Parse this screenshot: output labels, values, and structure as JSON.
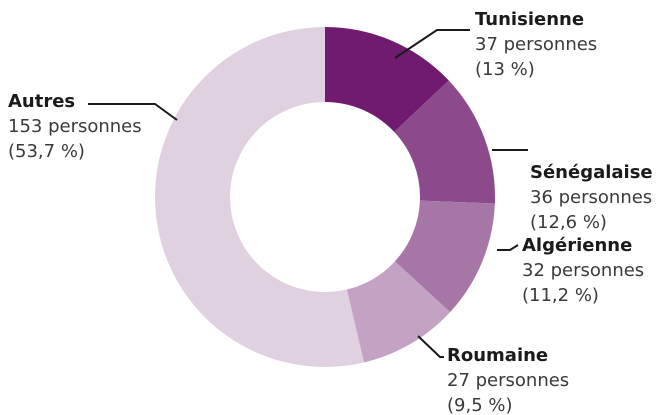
{
  "chart_data": {
    "type": "donut",
    "categories": [
      "Tunisienne",
      "Sénégalaise",
      "Algérienne",
      "Roumaine",
      "Autres"
    ],
    "values": [
      37,
      36,
      32,
      27,
      153
    ],
    "value_labels": [
      "37 personnes",
      "36 personnes",
      "32 personnes",
      "27 personnes",
      "153 personnes"
    ],
    "percentages": [
      13,
      12.6,
      11.2,
      9.5,
      53.7
    ],
    "percentage_labels": [
      "(13 %)",
      "(12,6 %)",
      "(11,2 %)",
      "(9,5 %)",
      "(53,7 %)"
    ],
    "colors": [
      "#701b70",
      "#8c4a8c",
      "#a677a6",
      "#c4a2c4",
      "#e0d1e0"
    ]
  }
}
